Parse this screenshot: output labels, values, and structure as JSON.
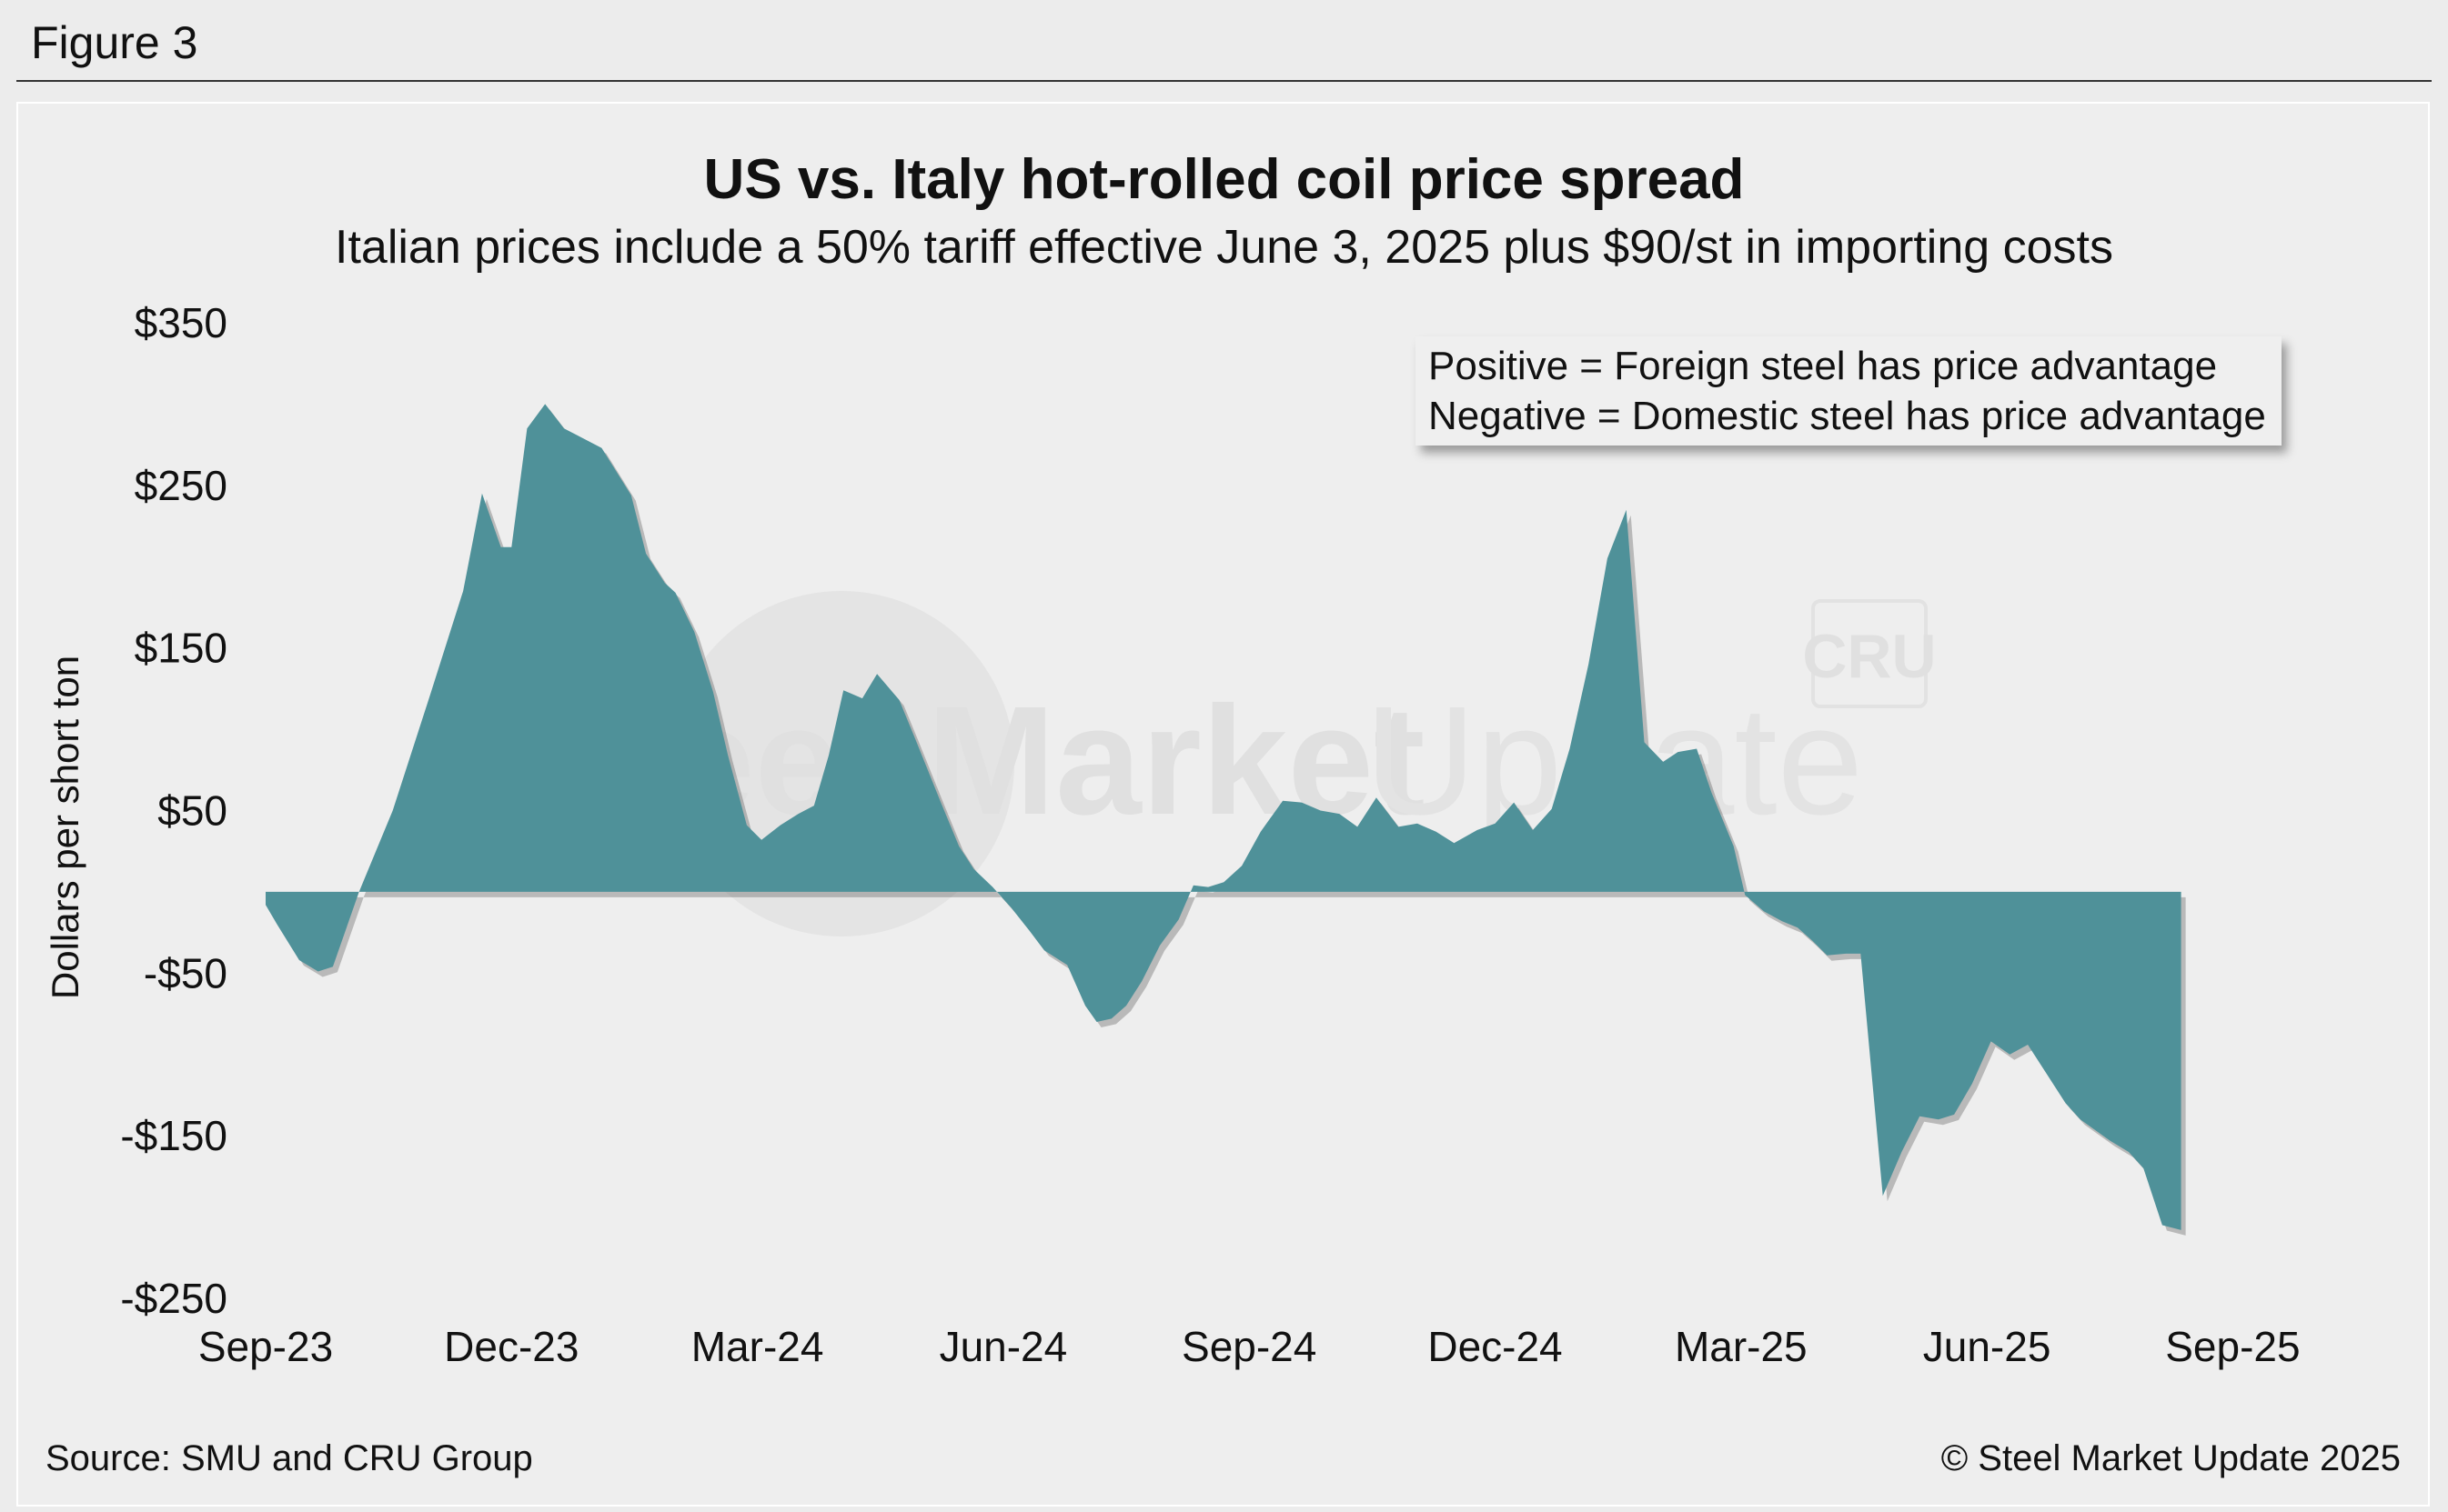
{
  "figure_label": "Figure 3",
  "source": "Source: SMU and CRU Group",
  "copyright": "© Steel Market Update 2025",
  "legend": {
    "positive": "Positive = Foreign steel has price advantage",
    "negative": "Negative = Domestic steel has price advantage"
  },
  "watermark": {
    "steel": "Steel Market",
    "update": "Update",
    "cru": "CRU"
  },
  "colors": {
    "area": "#4f9199",
    "background": "#eeeeee",
    "text": "#111111"
  },
  "chart_data": {
    "type": "area",
    "title": "US vs. Italy hot-rolled coil price spread",
    "subtitle": "Italian prices include a 50% tariff effective June 3, 2025 plus $90/st in importing costs",
    "xlabel": "",
    "ylabel": "Dollars per short ton",
    "ylim": [
      -250,
      350
    ],
    "yticks": [
      350,
      250,
      150,
      50,
      -50,
      -150,
      -250
    ],
    "ytick_labels": [
      "$350",
      "$250",
      "$150",
      "$50",
      "-$50",
      "-$150",
      "-$250"
    ],
    "xlim": [
      0,
      25
    ],
    "xticks": [
      0,
      3,
      6,
      9,
      12,
      15,
      18,
      21,
      24
    ],
    "xtick_labels": [
      "Sep-23",
      "Dec-23",
      "Mar-24",
      "Jun-24",
      "Sep-24",
      "Dec-24",
      "Mar-25",
      "Jun-25",
      "Sep-25"
    ],
    "x_units": "months since Sep-23",
    "grid": false,
    "series": [
      {
        "name": "US vs. Italy HRC spread ($/st)",
        "points": [
          [
            0.0,
            -8
          ],
          [
            0.14,
            -20
          ],
          [
            0.41,
            -42
          ],
          [
            0.64,
            -49
          ],
          [
            0.82,
            -46
          ],
          [
            1.14,
            0
          ],
          [
            1.55,
            50
          ],
          [
            2.0,
            120
          ],
          [
            2.41,
            185
          ],
          [
            2.64,
            245
          ],
          [
            2.87,
            212
          ],
          [
            3.0,
            212
          ],
          [
            3.19,
            285
          ],
          [
            3.41,
            300
          ],
          [
            3.64,
            285
          ],
          [
            4.1,
            273
          ],
          [
            4.46,
            244
          ],
          [
            4.64,
            208
          ],
          [
            4.87,
            190
          ],
          [
            5.0,
            184
          ],
          [
            5.23,
            160
          ],
          [
            5.46,
            123
          ],
          [
            5.64,
            84
          ],
          [
            5.87,
            41
          ],
          [
            6.05,
            32
          ],
          [
            6.28,
            41
          ],
          [
            6.5,
            48
          ],
          [
            6.69,
            53
          ],
          [
            6.87,
            84
          ],
          [
            7.05,
            124
          ],
          [
            7.28,
            119
          ],
          [
            7.46,
            134
          ],
          [
            7.73,
            118
          ],
          [
            7.91,
            96
          ],
          [
            8.23,
            56
          ],
          [
            8.46,
            28
          ],
          [
            8.64,
            14
          ],
          [
            8.87,
            3
          ],
          [
            9.1,
            -10
          ],
          [
            9.32,
            -24
          ],
          [
            9.5,
            -36
          ],
          [
            9.78,
            -45
          ],
          [
            10.0,
            -70
          ],
          [
            10.14,
            -80
          ],
          [
            10.32,
            -78
          ],
          [
            10.5,
            -70
          ],
          [
            10.69,
            -55
          ],
          [
            10.91,
            -33
          ],
          [
            11.14,
            -17
          ],
          [
            11.32,
            4
          ],
          [
            11.5,
            3
          ],
          [
            11.69,
            6
          ],
          [
            11.91,
            16
          ],
          [
            12.14,
            37
          ],
          [
            12.41,
            56
          ],
          [
            12.64,
            55
          ],
          [
            12.87,
            50
          ],
          [
            13.1,
            48
          ],
          [
            13.32,
            40
          ],
          [
            13.55,
            58
          ],
          [
            13.82,
            40
          ],
          [
            14.05,
            42
          ],
          [
            14.28,
            37
          ],
          [
            14.5,
            30
          ],
          [
            14.78,
            38
          ],
          [
            15.0,
            42
          ],
          [
            15.23,
            55
          ],
          [
            15.46,
            38
          ],
          [
            15.69,
            51
          ],
          [
            15.91,
            88
          ],
          [
            16.14,
            140
          ],
          [
            16.37,
            205
          ],
          [
            16.6,
            235
          ],
          [
            16.82,
            92
          ],
          [
            17.05,
            80
          ],
          [
            17.23,
            86
          ],
          [
            17.46,
            88
          ],
          [
            17.64,
            61
          ],
          [
            17.91,
            28
          ],
          [
            18.05,
            -2
          ],
          [
            18.28,
            -12
          ],
          [
            18.5,
            -18
          ],
          [
            18.69,
            -22
          ],
          [
            18.87,
            -30
          ],
          [
            19.05,
            -39
          ],
          [
            19.28,
            -38
          ],
          [
            19.46,
            -38
          ],
          [
            19.73,
            -187
          ],
          [
            19.96,
            -160
          ],
          [
            20.18,
            -138
          ],
          [
            20.41,
            -140
          ],
          [
            20.6,
            -137
          ],
          [
            20.82,
            -118
          ],
          [
            21.05,
            -92
          ],
          [
            21.28,
            -100
          ],
          [
            21.5,
            -94
          ],
          [
            21.73,
            -112
          ],
          [
            21.96,
            -130
          ],
          [
            22.14,
            -140
          ],
          [
            22.5,
            -153
          ],
          [
            22.73,
            -160
          ],
          [
            22.91,
            -170
          ],
          [
            23.14,
            -205
          ],
          [
            23.37,
            -208
          ],
          [
            23.37,
            0
          ]
        ]
      }
    ]
  }
}
